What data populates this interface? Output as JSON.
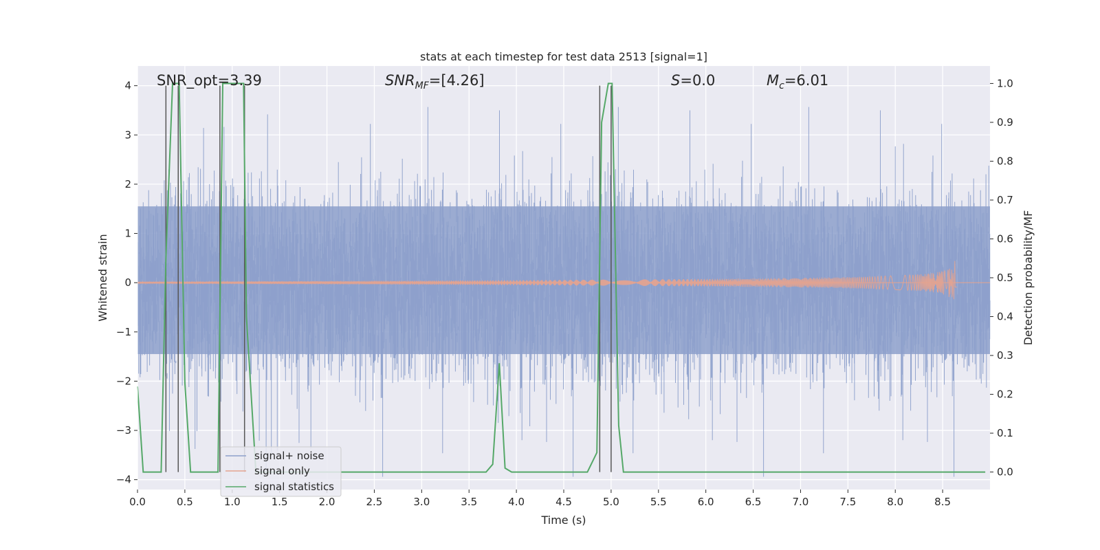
{
  "chart_data": {
    "type": "line",
    "title": "stats at each timestep for test data 2513 [signal=1]",
    "xlabel": "Time (s)",
    "ylabel": "Whitened strain",
    "y2label": "Detection probability/MF",
    "xlim": [
      0,
      9.0
    ],
    "ylim": [
      -4.2,
      4.4
    ],
    "y2lim": [
      -0.045,
      1.045
    ],
    "xticks": [
      0.0,
      0.5,
      1.0,
      1.5,
      2.0,
      2.5,
      3.0,
      3.5,
      4.0,
      4.5,
      5.0,
      5.5,
      6.0,
      6.5,
      7.0,
      7.5,
      8.0,
      8.5
    ],
    "xtick_labels": [
      "0.0",
      "0.5",
      "1.0",
      "1.5",
      "2.0",
      "2.5",
      "3.0",
      "3.5",
      "4.0",
      "4.5",
      "5.0",
      "5.5",
      "6.0",
      "6.5",
      "7.0",
      "7.5",
      "8.0",
      "8.5"
    ],
    "yticks": [
      -4,
      -3,
      -2,
      -1,
      0,
      1,
      2,
      3,
      4
    ],
    "ytick_labels": [
      "−4",
      "−3",
      "−2",
      "−1",
      "0",
      "1",
      "2",
      "3",
      "4"
    ],
    "y2ticks": [
      0.0,
      0.1,
      0.2,
      0.3,
      0.4,
      0.5,
      0.6,
      0.7,
      0.8,
      0.9,
      1.0
    ],
    "y2tick_labels": [
      "0.0",
      "0.1",
      "0.2",
      "0.3",
      "0.4",
      "0.5",
      "0.6",
      "0.7",
      "0.8",
      "0.9",
      "1.0"
    ],
    "grid": true,
    "legend_position": "lower-left",
    "annotations": {
      "snr_opt": "SNR_opt=3.39",
      "snr_mf_main": "SNR",
      "snr_mf_sub": "MF",
      "snr_mf_rest": "=[4.26]",
      "s_var": "S",
      "s_rest": "=0.0",
      "mc_var": "M",
      "mc_sub": "c",
      "mc_rest": "=6.01"
    },
    "series": [
      {
        "name": "signal+ noise",
        "color": "#8da0cb",
        "description_values": "dense whitened-strain noise, envelope approx ±2 with spikes to ±4",
        "envelope": {
          "x": [
            0.0,
            0.5,
            1.0,
            1.5,
            2.0,
            2.5,
            3.0,
            3.5,
            4.0,
            4.5,
            5.0,
            5.5,
            6.0,
            6.5,
            7.0,
            7.5,
            8.0,
            8.5,
            9.0
          ],
          "upper": [
            2.1,
            2.4,
            2.2,
            2.3,
            2.4,
            2.6,
            2.6,
            2.8,
            2.7,
            2.5,
            2.9,
            2.6,
            2.4,
            2.5,
            2.4,
            2.3,
            2.9,
            2.5,
            2.8
          ],
          "lower": [
            -2.3,
            -2.8,
            -2.9,
            -2.6,
            -2.5,
            -3.0,
            -2.5,
            -2.6,
            -3.0,
            -2.7,
            -2.8,
            -2.9,
            -2.7,
            -2.6,
            -2.5,
            -2.6,
            -2.6,
            -2.6,
            -2.1
          ]
        }
      },
      {
        "name": "signal only",
        "color": "#e5a38f",
        "chirp": {
          "t_start": 0.0,
          "t_merge": 8.65,
          "amp_max": 0.45
        }
      },
      {
        "name": "signal statistics",
        "color": "#55a868",
        "x": [
          0.0,
          0.06,
          0.25,
          0.3,
          0.37,
          0.44,
          0.5,
          0.56,
          0.62,
          0.7,
          0.85,
          0.9,
          0.93,
          1.0,
          1.12,
          1.15,
          1.25,
          1.4,
          3.68,
          3.75,
          3.82,
          3.88,
          3.95,
          4.2,
          4.75,
          4.85,
          4.9,
          4.97,
          5.01,
          5.08,
          5.13,
          5.3,
          8.95
        ],
        "y2": [
          0.22,
          0.0,
          0.0,
          0.55,
          1.0,
          1.0,
          0.23,
          0.0,
          0.0,
          0.0,
          0.0,
          1.0,
          1.0,
          1.0,
          1.0,
          0.4,
          0.0,
          0.0,
          0.0,
          0.02,
          0.28,
          0.01,
          0.0,
          0.0,
          0.0,
          0.05,
          0.9,
          1.0,
          1.0,
          0.12,
          0.0,
          0.0,
          0.0
        ]
      }
    ],
    "vlines": [
      0.3,
      0.43,
      0.87,
      1.13,
      4.88,
      5.0
    ],
    "vline_color": "#555555"
  }
}
